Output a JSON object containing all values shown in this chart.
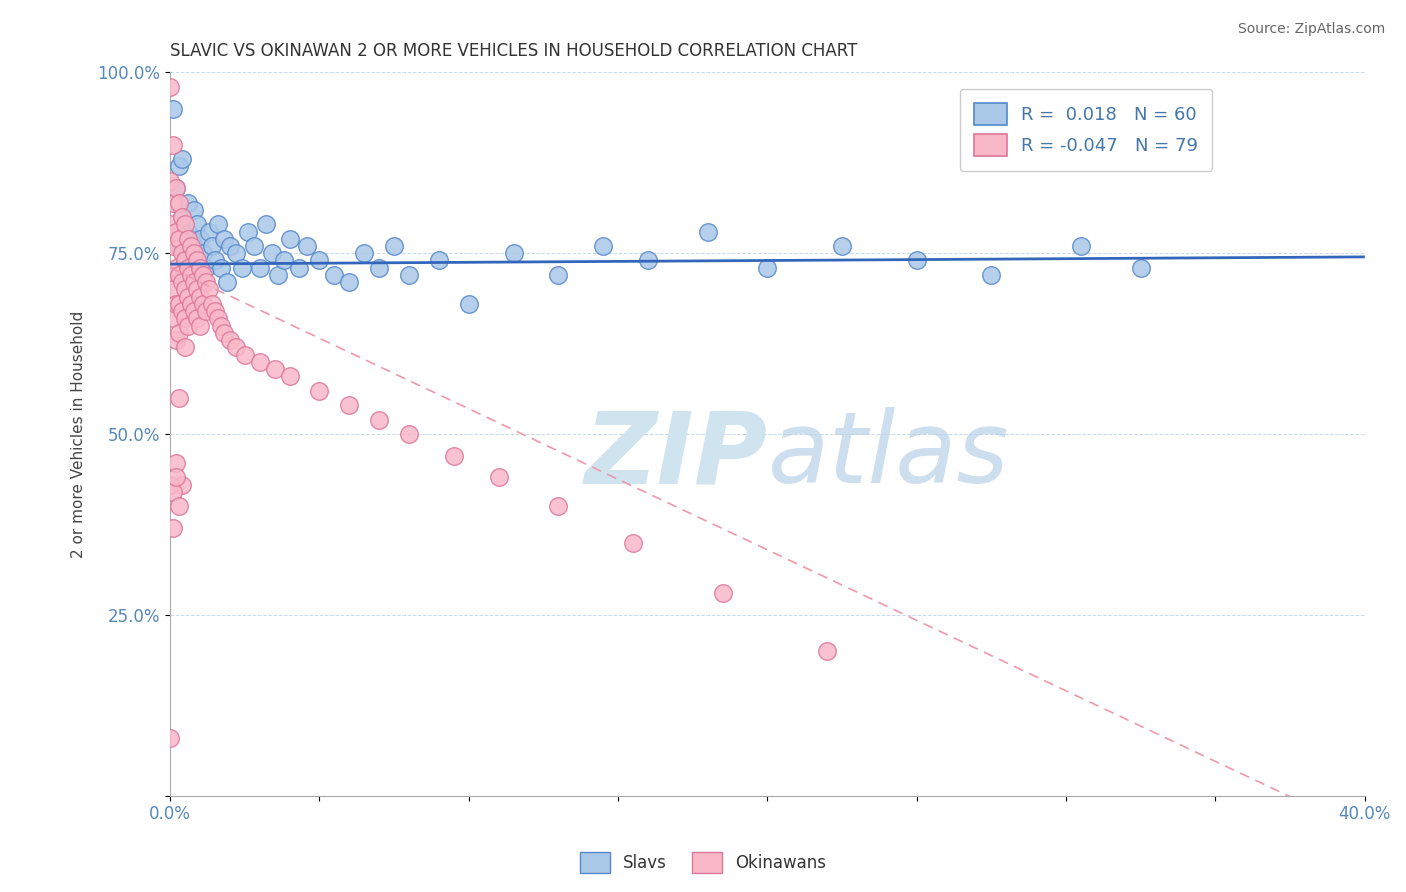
{
  "title": "SLAVIC VS OKINAWAN 2 OR MORE VEHICLES IN HOUSEHOLD CORRELATION CHART",
  "source": "Source: ZipAtlas.com",
  "ylabel": "2 or more Vehicles in Household",
  "x_min": 0.0,
  "x_max": 0.4,
  "y_min": 0.0,
  "y_max": 1.0,
  "x_ticks": [
    0.0,
    0.05,
    0.1,
    0.15,
    0.2,
    0.25,
    0.3,
    0.35,
    0.4
  ],
  "y_ticks": [
    0.0,
    0.25,
    0.5,
    0.75,
    1.0
  ],
  "slavic_R": 0.018,
  "slavic_N": 60,
  "okinawan_R": -0.047,
  "okinawan_N": 79,
  "slavic_color": "#aac8e8",
  "slavic_edge_color": "#5588cc",
  "okinawan_color": "#f8b8c8",
  "okinawan_edge_color": "#dd7799",
  "trend_slavic_color": "#3366bb",
  "trend_okinawan_color": "#ee99aa",
  "watermark_color": "#d0e4f0",
  "legend_slavs": "Slavs",
  "legend_okinawans": "Okinawans",
  "slavic_x": [
    0.001,
    0.002,
    0.002,
    0.003,
    0.003,
    0.004,
    0.004,
    0.005,
    0.005,
    0.006,
    0.006,
    0.007,
    0.007,
    0.008,
    0.008,
    0.009,
    0.009,
    0.01,
    0.011,
    0.012,
    0.013,
    0.014,
    0.015,
    0.016,
    0.017,
    0.018,
    0.019,
    0.02,
    0.022,
    0.024,
    0.026,
    0.028,
    0.03,
    0.032,
    0.034,
    0.036,
    0.038,
    0.04,
    0.043,
    0.046,
    0.05,
    0.055,
    0.06,
    0.065,
    0.07,
    0.075,
    0.08,
    0.09,
    0.1,
    0.115,
    0.13,
    0.145,
    0.16,
    0.18,
    0.2,
    0.225,
    0.25,
    0.275,
    0.305,
    0.325
  ],
  "slavic_y": [
    0.95,
    0.84,
    0.78,
    0.87,
    0.76,
    0.8,
    0.88,
    0.79,
    0.74,
    0.82,
    0.78,
    0.77,
    0.73,
    0.76,
    0.81,
    0.74,
    0.79,
    0.77,
    0.75,
    0.73,
    0.78,
    0.76,
    0.74,
    0.79,
    0.73,
    0.77,
    0.71,
    0.76,
    0.75,
    0.73,
    0.78,
    0.76,
    0.73,
    0.79,
    0.75,
    0.72,
    0.74,
    0.77,
    0.73,
    0.76,
    0.74,
    0.72,
    0.71,
    0.75,
    0.73,
    0.76,
    0.72,
    0.74,
    0.68,
    0.75,
    0.72,
    0.76,
    0.74,
    0.78,
    0.73,
    0.76,
    0.74,
    0.72,
    0.76,
    0.73
  ],
  "okinawan_x": [
    0.0,
    0.0,
    0.0,
    0.0,
    0.001,
    0.001,
    0.001,
    0.001,
    0.001,
    0.002,
    0.002,
    0.002,
    0.002,
    0.002,
    0.003,
    0.003,
    0.003,
    0.003,
    0.003,
    0.004,
    0.004,
    0.004,
    0.004,
    0.005,
    0.005,
    0.005,
    0.005,
    0.005,
    0.006,
    0.006,
    0.006,
    0.006,
    0.007,
    0.007,
    0.007,
    0.008,
    0.008,
    0.008,
    0.009,
    0.009,
    0.009,
    0.01,
    0.01,
    0.01,
    0.011,
    0.011,
    0.012,
    0.012,
    0.013,
    0.014,
    0.015,
    0.016,
    0.017,
    0.018,
    0.02,
    0.022,
    0.025,
    0.03,
    0.035,
    0.04,
    0.05,
    0.06,
    0.07,
    0.08,
    0.095,
    0.11,
    0.13,
    0.155,
    0.185,
    0.22,
    0.0,
    0.001,
    0.002,
    0.003,
    0.004,
    0.0,
    0.001,
    0.002,
    0.003
  ],
  "okinawan_y": [
    0.98,
    0.85,
    0.79,
    0.72,
    0.9,
    0.82,
    0.76,
    0.7,
    0.66,
    0.84,
    0.78,
    0.73,
    0.68,
    0.63,
    0.82,
    0.77,
    0.72,
    0.68,
    0.64,
    0.8,
    0.75,
    0.71,
    0.67,
    0.79,
    0.74,
    0.7,
    0.66,
    0.62,
    0.77,
    0.73,
    0.69,
    0.65,
    0.76,
    0.72,
    0.68,
    0.75,
    0.71,
    0.67,
    0.74,
    0.7,
    0.66,
    0.73,
    0.69,
    0.65,
    0.72,
    0.68,
    0.71,
    0.67,
    0.7,
    0.68,
    0.67,
    0.66,
    0.65,
    0.64,
    0.63,
    0.62,
    0.61,
    0.6,
    0.59,
    0.58,
    0.56,
    0.54,
    0.52,
    0.5,
    0.47,
    0.44,
    0.4,
    0.35,
    0.28,
    0.2,
    0.08,
    0.37,
    0.46,
    0.55,
    0.43,
    0.43,
    0.42,
    0.44,
    0.4
  ]
}
